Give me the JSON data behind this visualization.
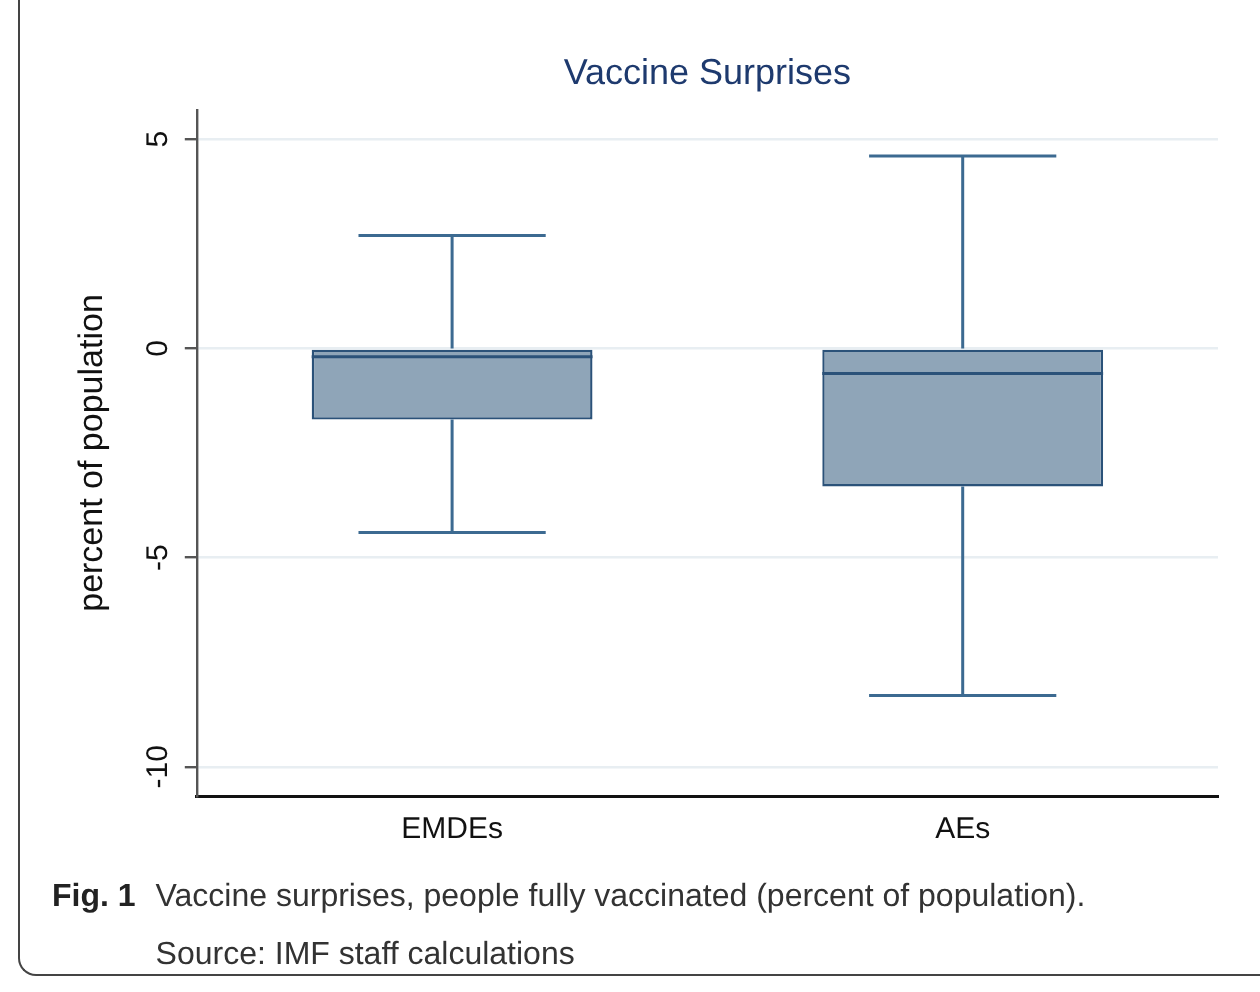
{
  "chart_data": {
    "type": "box",
    "title": "Vaccine Surprises",
    "ylabel": "percent of population",
    "categories": [
      "EMDEs",
      "AEs"
    ],
    "boxes": [
      {
        "low": -4.4,
        "q1": -1.7,
        "median": -0.2,
        "q3": 0,
        "high": 2.7
      },
      {
        "low": -8.3,
        "q1": -3.3,
        "median": -0.6,
        "q3": 0,
        "high": 4.6
      }
    ],
    "color": "#8fa5b8",
    "ylim": [
      -10.7,
      5.7
    ],
    "yticks": [
      -10,
      -5,
      0,
      5
    ],
    "grid": "y",
    "annotations": [
      "Fig. 1",
      "Vaccine surprises, people fully vaccinated (percent of population). Source: IMF staff calculations"
    ]
  }
}
